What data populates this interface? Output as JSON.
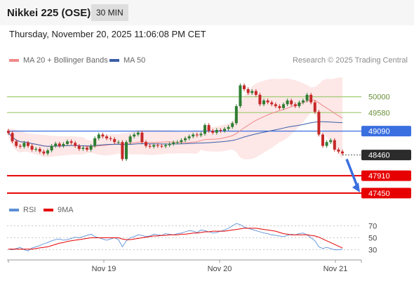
{
  "header": {
    "title": "Nikkei 225 (OSE)",
    "timeframe": "30 MIN",
    "datetime": "Thursday, November 20, 2025 11:06:08 PM CET"
  },
  "legend": {
    "ma20": "MA 20 + Bollinger Bands",
    "ma50": "MA 50",
    "rsi": "RSI",
    "ma9": "9MA"
  },
  "credit": "Research © 2025 Trading Central",
  "colors": {
    "ma20": "#f08a8a",
    "ma50": "#3b5fa8",
    "bollinger_fill": "#fde3e3",
    "up_candle": "#2e7d32",
    "down_candle": "#c62828",
    "support": "#e60000",
    "resistance": "#a8cf7f",
    "pivot": "#3a6fe0",
    "current_price_bg": "#2b2b2b",
    "rsi_line": "#5b8fd6",
    "rsi_ma": "#e60000"
  },
  "chart_data": [
    {
      "type": "candlestick",
      "price_range": [
        47300,
        50700
      ],
      "x_labels": [
        "Nov 19",
        "Nov 20",
        "Nov 21"
      ],
      "current_price": "48460",
      "levels": [
        {
          "value": 50000,
          "label": "50000",
          "kind": "resistance"
        },
        {
          "value": 49580,
          "label": "49580",
          "kind": "resistance"
        },
        {
          "value": 49090,
          "label": "49090",
          "kind": "pivot"
        },
        {
          "value": 47910,
          "label": "47910",
          "kind": "support"
        },
        {
          "value": 47450,
          "label": "47450",
          "kind": "support"
        }
      ],
      "close": [
        49040,
        48820,
        48700,
        48680,
        48780,
        48700,
        48600,
        48620,
        48550,
        48500,
        48580,
        48700,
        48760,
        48700,
        48750,
        48820,
        48780,
        48700,
        48620,
        48650,
        48600,
        48700,
        48900,
        49000,
        48950,
        48900,
        48880,
        48800,
        48800,
        48350,
        48800,
        48950,
        49000,
        49050,
        48800,
        48700,
        48680,
        48720,
        48700,
        48690,
        48720,
        48750,
        48790,
        48800,
        48850,
        48900,
        48950,
        49000,
        48980,
        49020,
        49250,
        49100,
        49050,
        49120,
        49100,
        49150,
        49200,
        49300,
        49750,
        50300,
        50200,
        50100,
        50150,
        50050,
        49800,
        49900,
        49850,
        49800,
        49750,
        49700,
        49800,
        49900,
        49800,
        49750,
        49850,
        49900,
        50050,
        49850,
        49600,
        49000,
        48700,
        48800,
        48850,
        48600,
        48550,
        48500
      ]
    },
    {
      "type": "line",
      "title": "RSI",
      "y_range": [
        20,
        80
      ],
      "y_ticks": [
        70,
        50,
        30
      ],
      "x_labels": [
        "Nov 19",
        "Nov 20",
        "Nov 21"
      ],
      "series": [
        {
          "name": "RSI",
          "values": [
            31,
            30,
            32,
            34,
            30,
            28,
            33,
            35,
            37,
            40,
            42,
            45,
            47,
            48,
            46,
            47,
            49,
            51,
            50,
            52,
            54,
            56,
            52,
            50,
            48,
            46,
            48,
            50,
            47,
            35,
            45,
            50,
            52,
            55,
            54,
            52,
            53,
            56,
            55,
            54,
            57,
            56,
            55,
            57,
            58,
            60,
            62,
            61,
            59,
            63,
            62,
            60,
            58,
            59,
            61,
            63,
            66,
            70,
            74,
            72,
            68,
            66,
            64,
            62,
            60,
            58,
            57,
            55,
            54,
            53,
            52,
            54,
            56,
            55,
            57,
            58,
            55,
            50,
            45,
            35,
            32,
            34,
            32,
            30,
            30,
            31
          ]
        },
        {
          "name": "9MA",
          "values": [
            31,
            31,
            31,
            31,
            31,
            31,
            31,
            32,
            33,
            34,
            35,
            37,
            39,
            41,
            42,
            44,
            45,
            46,
            47,
            48,
            49,
            50,
            50,
            50,
            50,
            50,
            50,
            50,
            50,
            48,
            47,
            47,
            48,
            49,
            50,
            51,
            52,
            53,
            53,
            54,
            54,
            55,
            55,
            55,
            56,
            56,
            57,
            58,
            58,
            59,
            60,
            60,
            61,
            61,
            61,
            61,
            62,
            63,
            64,
            65,
            66,
            66,
            66,
            66,
            65,
            64,
            63,
            62,
            61,
            59,
            57,
            56,
            55,
            55,
            55,
            55,
            55,
            54,
            53,
            51,
            48,
            45,
            42,
            39,
            36,
            33
          ]
        }
      ]
    }
  ]
}
